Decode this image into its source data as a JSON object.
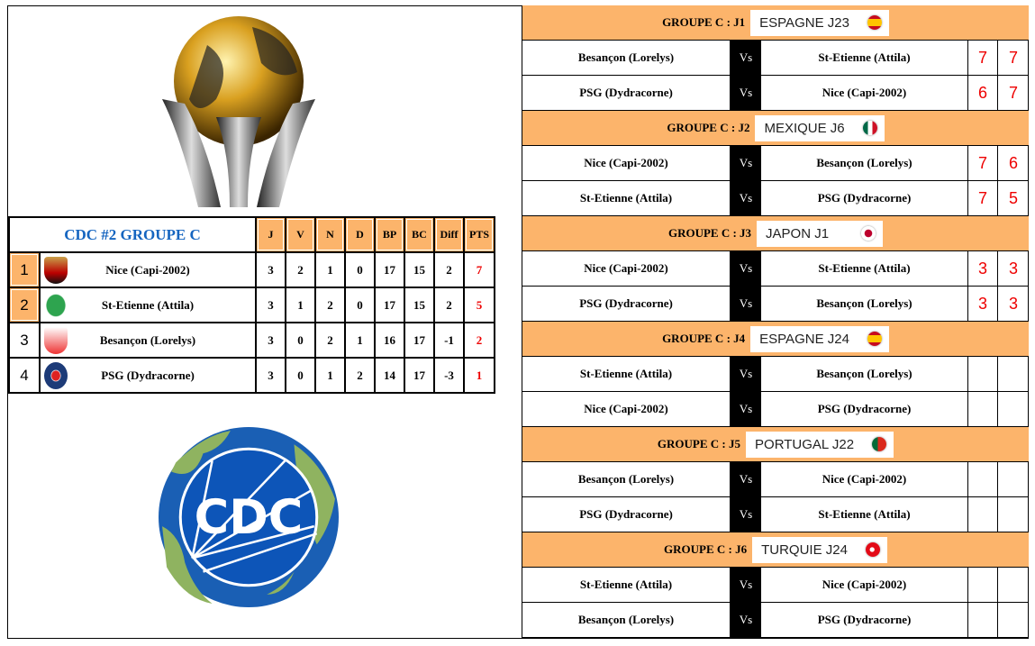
{
  "standings": {
    "title": "CDC #2 GROUPE C",
    "headers": [
      "J",
      "V",
      "N",
      "D",
      "BP",
      "BC",
      "Diff",
      "PTS"
    ],
    "highlight_color": "#fcb46b",
    "rows": [
      {
        "rank": "1",
        "team": "Nice (Capi-2002)",
        "crest": "nice-crest",
        "stats": [
          "3",
          "2",
          "1",
          "0",
          "17",
          "15",
          "2",
          "7"
        ],
        "qualified": true
      },
      {
        "rank": "2",
        "team": "St-Etienne (Attila)",
        "crest": "saint-etienne-crest",
        "stats": [
          "3",
          "1",
          "2",
          "0",
          "17",
          "15",
          "2",
          "5"
        ],
        "qualified": true
      },
      {
        "rank": "3",
        "team": "Besançon (Lorelys)",
        "crest": "besancon-crest",
        "stats": [
          "3",
          "0",
          "2",
          "1",
          "16",
          "17",
          "-1",
          "2"
        ],
        "qualified": false
      },
      {
        "rank": "4",
        "team": "PSG (Dydracorne)",
        "crest": "psg-crest",
        "stats": [
          "3",
          "0",
          "1",
          "2",
          "14",
          "17",
          "-3",
          "1"
        ],
        "qualified": false
      }
    ]
  },
  "logo": {
    "text": "CDC"
  },
  "matchdays": [
    {
      "title": "GROUPE C : J1",
      "label": "ESPAGNE J23",
      "flag": "spain",
      "matches": [
        {
          "home": "Besançon (Lorelys)",
          "vs": "Vs",
          "away": "St-Etienne (Attila)",
          "s1": "7",
          "s2": "7"
        },
        {
          "home": "PSG (Dydracorne)",
          "vs": "Vs",
          "away": "Nice (Capi-2002)",
          "s1": "6",
          "s2": "7"
        }
      ]
    },
    {
      "title": "GROUPE C : J2",
      "label": "MEXIQUE J6",
      "flag": "mexico",
      "matches": [
        {
          "home": "Nice (Capi-2002)",
          "vs": "Vs",
          "away": "Besançon (Lorelys)",
          "s1": "7",
          "s2": "6"
        },
        {
          "home": "St-Etienne (Attila)",
          "vs": "Vs",
          "away": "PSG (Dydracorne)",
          "s1": "7",
          "s2": "5"
        }
      ]
    },
    {
      "title": "GROUPE C : J3",
      "label": "JAPON J1",
      "flag": "japan",
      "matches": [
        {
          "home": "Nice (Capi-2002)",
          "vs": "Vs",
          "away": "St-Etienne (Attila)",
          "s1": "3",
          "s2": "3"
        },
        {
          "home": "PSG (Dydracorne)",
          "vs": "Vs",
          "away": "Besançon (Lorelys)",
          "s1": "3",
          "s2": "3"
        }
      ]
    },
    {
      "title": "GROUPE C : J4",
      "label": "ESPAGNE J24",
      "flag": "spain",
      "matches": [
        {
          "home": "St-Etienne (Attila)",
          "vs": "Vs",
          "away": "Besançon (Lorelys)",
          "s1": "",
          "s2": ""
        },
        {
          "home": "Nice (Capi-2002)",
          "vs": "Vs",
          "away": "PSG (Dydracorne)",
          "s1": "",
          "s2": ""
        }
      ]
    },
    {
      "title": "GROUPE C : J5",
      "label": "PORTUGAL J22",
      "flag": "portugal",
      "matches": [
        {
          "home": "Besançon (Lorelys)",
          "vs": "Vs",
          "away": "Nice (Capi-2002)",
          "s1": "",
          "s2": ""
        },
        {
          "home": "PSG (Dydracorne)",
          "vs": "Vs",
          "away": "St-Etienne (Attila)",
          "s1": "",
          "s2": ""
        }
      ]
    },
    {
      "title": "GROUPE C : J6",
      "label": "TURQUIE J24",
      "flag": "turkey",
      "matches": [
        {
          "home": "St-Etienne (Attila)",
          "vs": "Vs",
          "away": "Nice (Capi-2002)",
          "s1": "",
          "s2": ""
        },
        {
          "home": "Besançon (Lorelys)",
          "vs": "Vs",
          "away": "PSG (Dydracorne)",
          "s1": "",
          "s2": ""
        }
      ]
    }
  ]
}
